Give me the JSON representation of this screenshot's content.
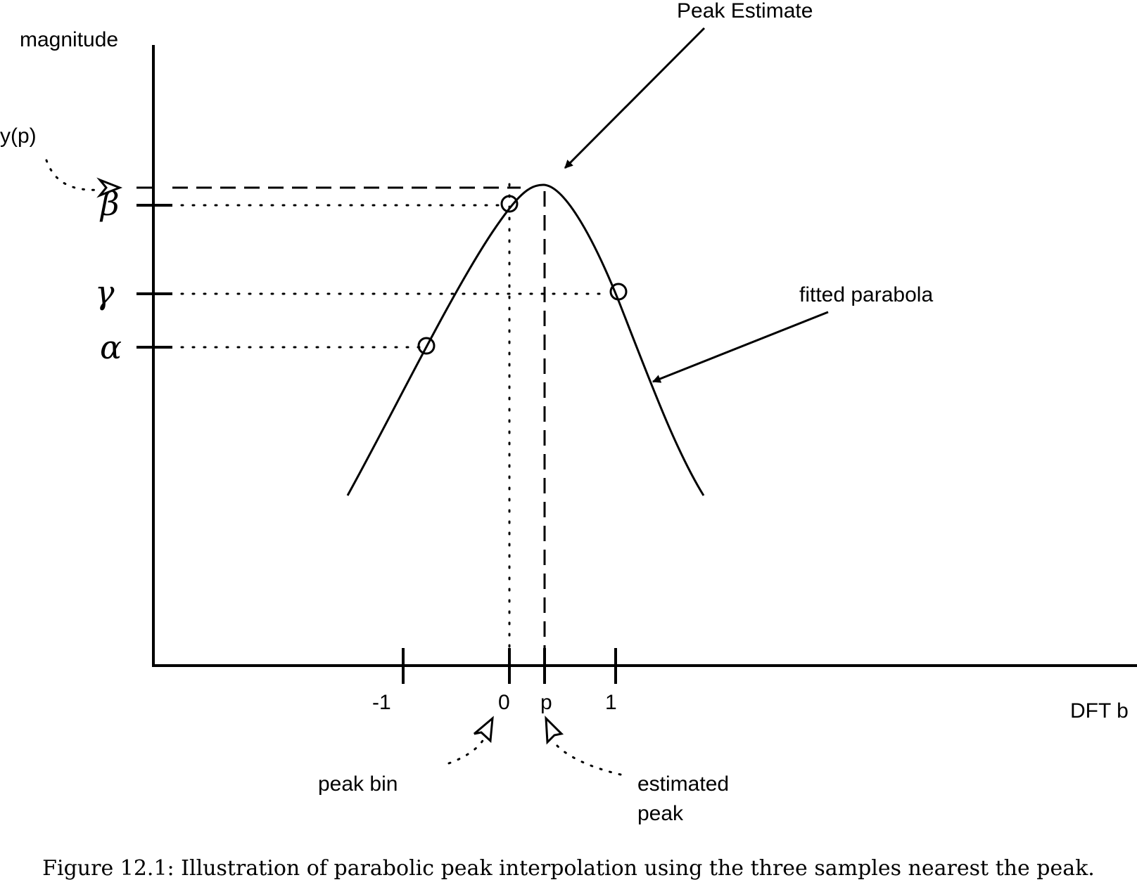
{
  "labels": {
    "y_axis": "magnitude",
    "x_axis": "DFT b",
    "peak_value": "y(p)",
    "beta": "β",
    "gamma": "γ",
    "alpha": "α",
    "peak_estimate": "Peak Estimate",
    "fitted_parabola": "fitted parabola",
    "peak_bin": "peak bin",
    "estimated_peak_line1": "estimated",
    "estimated_peak_line2": "peak"
  },
  "ticks": {
    "minus_one": "-1",
    "zero": "0",
    "p": "p",
    "one": "1"
  },
  "caption": "Figure 12.1: Illustration of parabolic peak interpolation using the three samples nearest the peak."
}
